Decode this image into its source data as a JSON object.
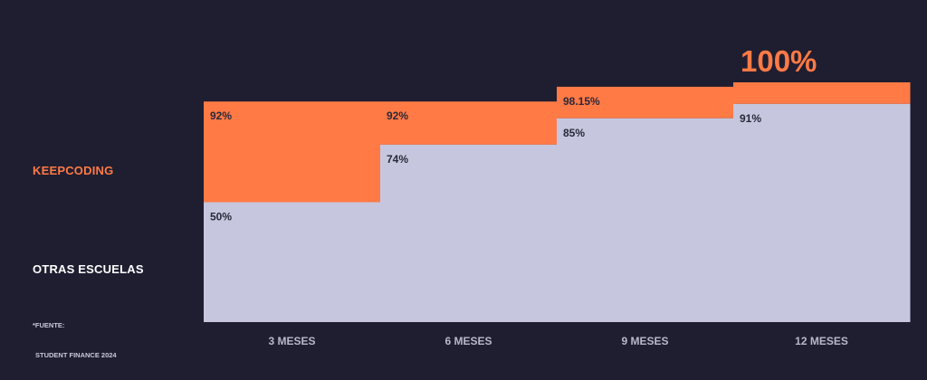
{
  "chart_data": {
    "type": "bar",
    "categories": [
      "3 MESES",
      "6 MESES",
      "9 MESES",
      "12 MESES"
    ],
    "series": [
      {
        "name": "KEEPCODING",
        "values": [
          92,
          92,
          98.15,
          100
        ],
        "labels": [
          "92%",
          "92%",
          "98.15%",
          "100%"
        ],
        "color": "#ff7a45"
      },
      {
        "name": "OTRAS ESCUELAS",
        "values": [
          50,
          74,
          85,
          91
        ],
        "labels": [
          "50%",
          "74%",
          "85%",
          "91%"
        ],
        "color": "#c6c7de"
      }
    ],
    "ylim": [
      0,
      100
    ],
    "legend_position": "left",
    "grid": false
  },
  "legend": {
    "keepcoding": "KEEPCODING",
    "otras": "OTRAS ESCUELAS"
  },
  "source": {
    "line1": "*FUENTE:",
    "line2": "STUDENT FINANCE 2024"
  },
  "colors": {
    "background": "#1f1e31",
    "accent": "#ff7a45",
    "secondary": "#c6c7de",
    "text_dark": "#2a2839",
    "axis_text": "#b8b8c8"
  }
}
